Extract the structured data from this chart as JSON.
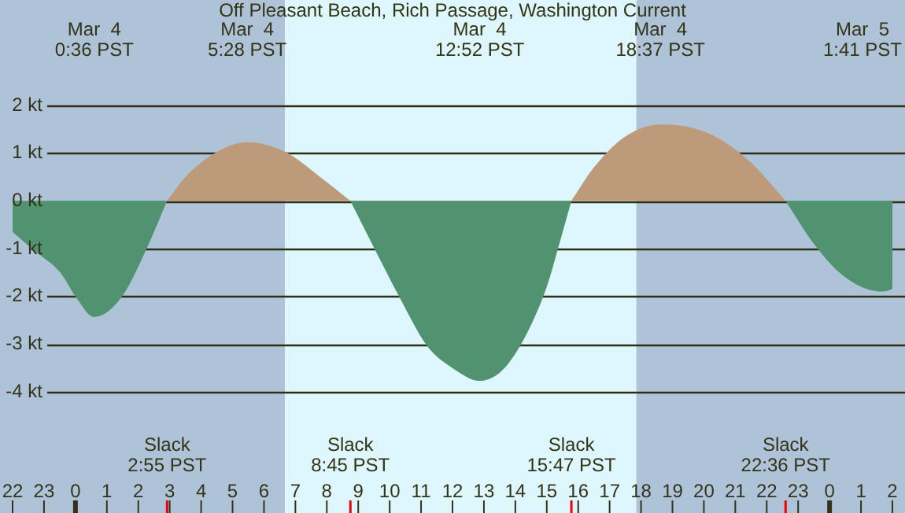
{
  "chart_data": {
    "type": "area",
    "title": "Off Pleasant Beach, Rich Passage, Washington Current",
    "series": [
      {
        "color": "#519371",
        "x": [
          "--03-03T22:00",
          "--03-03T22:42",
          "--03-03T23:31",
          "--03-04T00:00",
          "--03-04T00:36",
          "--03-04T01:29",
          "--03-04T02:16",
          "--03-04T02:55",
          "--03-04T05:30",
          "--03-04T08:45",
          "--03-04T09:31",
          "--03-04T10:18",
          "--03-04T11:11",
          "--03-04T12:00",
          "--03-04T12:52",
          "--03-04T13:30",
          "--03-04T14:00",
          "--03-04T14:30",
          "--03-04T15:00",
          "--03-04T15:24",
          "--03-04T15:47",
          "--03-04T19:00",
          "--03-04T22:36",
          "--03-04T23:30",
          "--03-05T00:30",
          "--03-05T01:41",
          "--03-05T02:00"
        ],
        "values": [
          -0.65,
          -1.05,
          -1.5,
          -2.0,
          -2.43,
          -2.0,
          -1.0,
          0,
          null,
          0,
          -1.0,
          -2.0,
          -3.03,
          -3.5,
          -3.77,
          -3.6,
          -3.2,
          -2.6,
          -1.8,
          -0.9,
          0,
          null,
          0,
          -0.9,
          -1.6,
          -1.9,
          -1.85
        ]
      },
      {
        "color": "#bc9a7a",
        "x": [
          "--03-04T02:55",
          "--03-04T03:30",
          "--03-04T04:26",
          "--03-04T05:28",
          "--03-04T06:40",
          "--03-04T07:44",
          "--03-04T08:45",
          "--03-04T12:00",
          "--03-04T15:47",
          "--03-04T16:30",
          "--03-04T17:30",
          "--03-04T18:37",
          "--03-04T19:30",
          "--03-04T20:30",
          "--03-04T21:30",
          "--03-04T22:36"
        ],
        "values": [
          0,
          0.5,
          1.0,
          1.23,
          1.03,
          0.53,
          0,
          null,
          0,
          0.7,
          1.35,
          1.6,
          1.55,
          1.3,
          0.8,
          0
        ]
      }
    ],
    "xlim": [
      "--03-03T22:00",
      "--03-05T02:00"
    ],
    "xticks": [
      {
        "value": "--03-03T22:00",
        "label": "22"
      },
      {
        "value": "--03-03T23:00",
        "label": "23"
      },
      {
        "value": "--03-04T00:00",
        "label": "0"
      },
      {
        "value": "--03-04T01:00",
        "label": "1"
      },
      {
        "value": "--03-04T02:00",
        "label": "2"
      },
      {
        "value": "--03-04T03:00",
        "label": "3"
      },
      {
        "value": "--03-04T04:00",
        "label": "4"
      },
      {
        "value": "--03-04T05:00",
        "label": "5"
      },
      {
        "value": "--03-04T06:00",
        "label": "6"
      },
      {
        "value": "--03-04T07:00",
        "label": "7"
      },
      {
        "value": "--03-04T08:00",
        "label": "8"
      },
      {
        "value": "--03-04T09:00",
        "label": "9"
      },
      {
        "value": "--03-04T10:00",
        "label": "10"
      },
      {
        "value": "--03-04T11:00",
        "label": "11"
      },
      {
        "value": "--03-04T12:00",
        "label": "12"
      },
      {
        "value": "--03-04T13:00",
        "label": "13"
      },
      {
        "value": "--03-04T14:00",
        "label": "14"
      },
      {
        "value": "--03-04T15:00",
        "label": "15"
      },
      {
        "value": "--03-04T16:00",
        "label": "16"
      },
      {
        "value": "--03-04T17:00",
        "label": "17"
      },
      {
        "value": "--03-04T18:00",
        "label": "18"
      },
      {
        "value": "--03-04T19:00",
        "label": "19"
      },
      {
        "value": "--03-04T20:00",
        "label": "20"
      },
      {
        "value": "--03-04T21:00",
        "label": "21"
      },
      {
        "value": "--03-04T22:00",
        "label": "22"
      },
      {
        "value": "--03-04T23:00",
        "label": "23"
      },
      {
        "value": "--03-05T00:00",
        "label": "0"
      },
      {
        "value": "--03-05T01:00",
        "label": "1"
      },
      {
        "value": "--03-05T02:00",
        "label": "2"
      }
    ],
    "ylim": [
      -4,
      2
    ],
    "yticks": [
      {
        "value": 2,
        "label": "2 kt"
      },
      {
        "value": 1,
        "label": "1 kt"
      },
      {
        "value": 0,
        "label": "0 kt"
      },
      {
        "value": -1,
        "label": "-1 kt"
      },
      {
        "value": -2,
        "label": "-2 kt"
      },
      {
        "value": -3,
        "label": "-3 kt"
      },
      {
        "value": -4,
        "label": "-4 kt"
      }
    ],
    "grid": "y",
    "legend": false,
    "bands": [
      {
        "axis": "x",
        "from": "--03-03T22:00",
        "to": "--03-04T06:40",
        "color": "#afc3d8"
      },
      {
        "axis": "x",
        "from": "--03-04T06:40",
        "to": "--03-04T17:51",
        "color": "#def6fd"
      },
      {
        "axis": "x",
        "from": "--03-04T17:51",
        "to": "--03-05T02:00",
        "color": "#afc3d8"
      }
    ],
    "annotations": [
      "Mar  4\n0:36 PST",
      "Mar  4\n5:28 PST",
      "Mar  4\n12:52 PST",
      "Mar  4\n18:37 PST",
      "Mar  5\n1:41 PST",
      "Slack\n2:55 PST",
      "Slack\n8:45 PST",
      "Slack\n15:47 PST",
      "Slack\n22:36 PST"
    ]
  }
}
